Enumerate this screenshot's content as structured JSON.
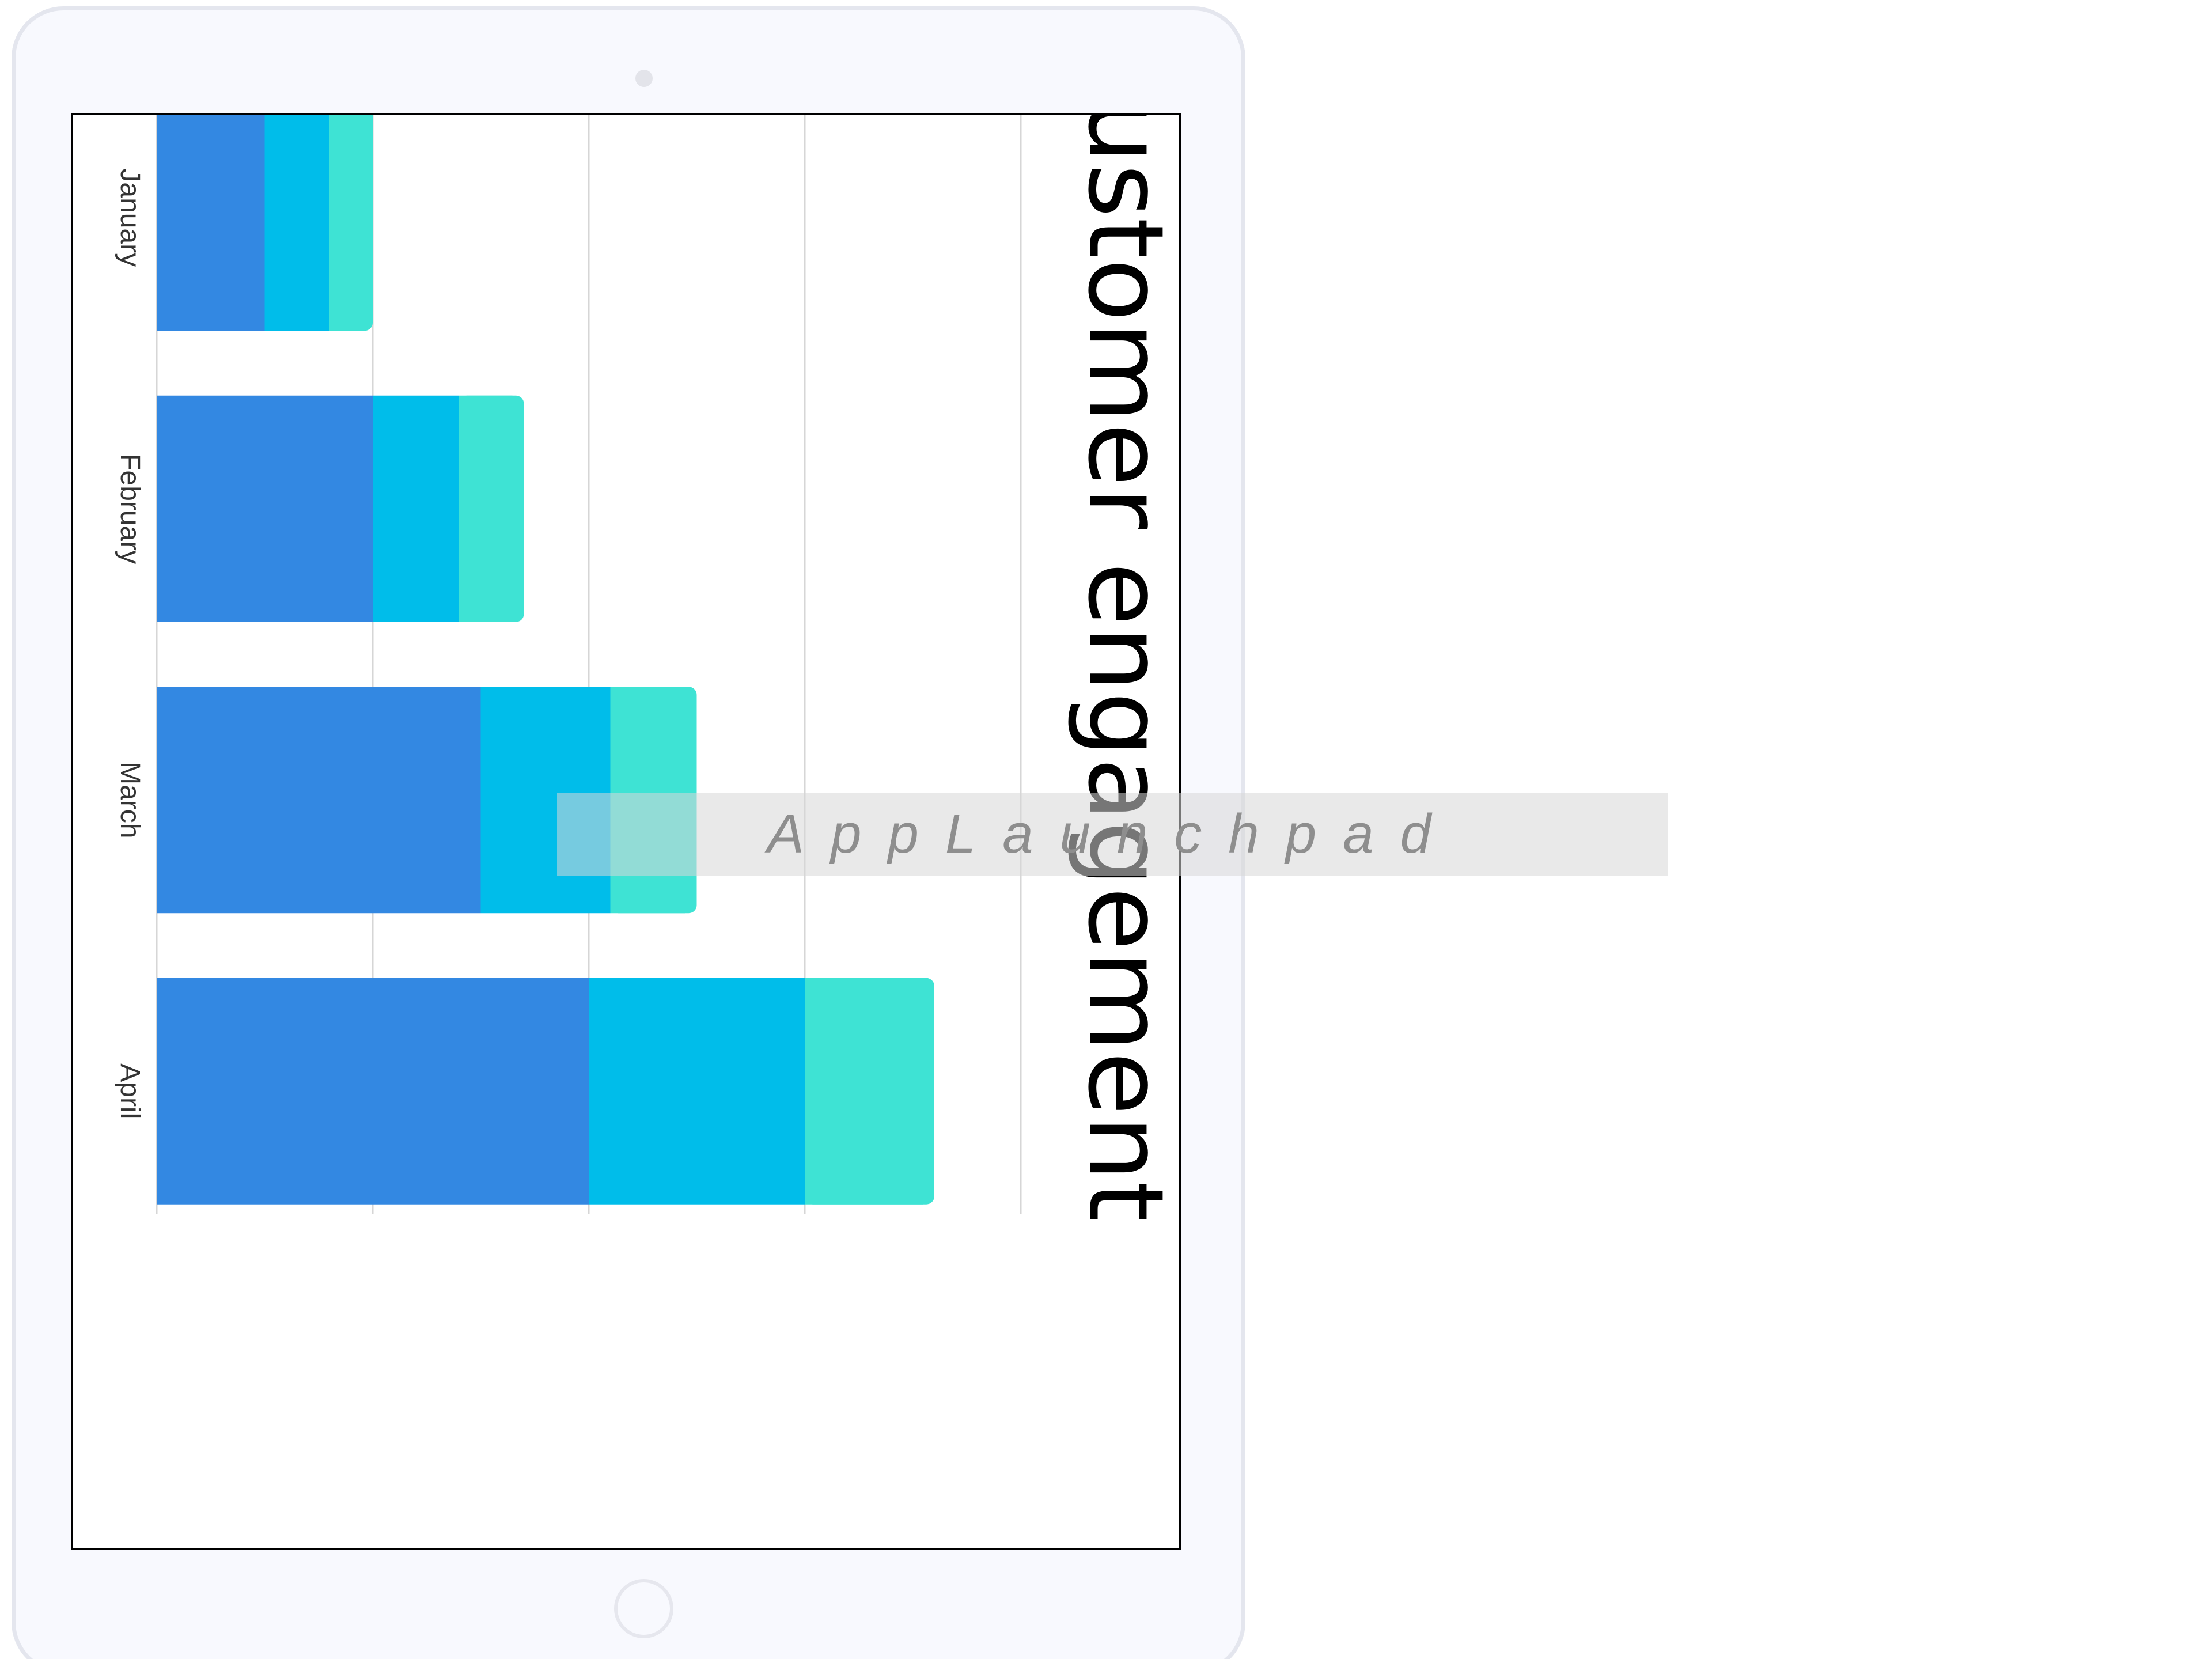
{
  "chart_data": {
    "type": "bar",
    "stacked": true,
    "orientation": "rotated 90° clockwise",
    "title": "customer engagement",
    "categories": [
      "January",
      "February",
      "March",
      "April"
    ],
    "series": [
      {
        "values": [
          5,
          10,
          15,
          20
        ],
        "color": "#3388e2"
      },
      {
        "values": [
          3,
          4,
          6,
          10
        ],
        "color": "#00bdea"
      },
      {
        "values": [
          2,
          3,
          4,
          6
        ],
        "color": "#3ee3d4"
      }
    ],
    "ylim": [
      0,
      40
    ],
    "yticks": [
      "0",
      "10",
      "20",
      "30",
      "40"
    ],
    "grid": true,
    "gridline_color": "#d6d6d6"
  },
  "watermark": {
    "text": "AppLaunchpad"
  },
  "colors": {
    "device_frame": "#f8f9fe",
    "device_border": "#e4e6ee",
    "screen_border": "#000000"
  }
}
